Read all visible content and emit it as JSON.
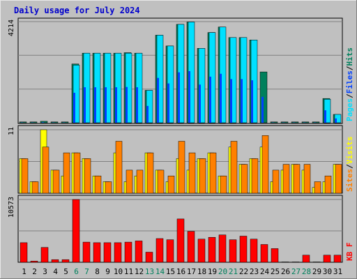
{
  "title": "Daily usage for July 2024",
  "colors": {
    "background": "#c0c0c0",
    "plot_area": "#c0c0c0",
    "border_light": "#e8e8e8",
    "border_dark": "#808080",
    "title": "#0000cc",
    "grid": "#808080",
    "hits": "#00805c",
    "files": "#0040ff",
    "pages": "#00e0ff",
    "visits": "#ffff00",
    "sites": "#ff8000",
    "kbytes": "#ff0000",
    "weekend_label": "#00805c",
    "weekday_label": "#000000"
  },
  "chart_data": [
    {
      "type": "bar",
      "panel": "hits-files-pages",
      "ymax_label": "4214",
      "ylim": [
        0,
        4214
      ],
      "legend_placement": "right",
      "legend": [
        {
          "text": "Pages",
          "color": "#00e0ff"
        },
        {
          "text": "/",
          "color": "#000000"
        },
        {
          "text": "Files",
          "color": "#0040ff"
        },
        {
          "text": "/",
          "color": "#000000"
        },
        {
          "text": "Hits",
          "color": "#00805c"
        }
      ],
      "categories": [
        "1",
        "2",
        "3",
        "4",
        "5",
        "6",
        "7",
        "8",
        "9",
        "10",
        "11",
        "12",
        "13",
        "14",
        "15",
        "16",
        "17",
        "18",
        "19",
        "20",
        "21",
        "22",
        "23",
        "24",
        "25",
        "26",
        "27",
        "28",
        "29",
        "30",
        "31"
      ],
      "series": [
        {
          "name": "Hits",
          "values": [
            35,
            35,
            60,
            35,
            35,
            2450,
            2900,
            2900,
            2900,
            2900,
            2920,
            2900,
            1350,
            3650,
            3200,
            4100,
            4200,
            3100,
            3760,
            3990,
            3550,
            3550,
            3450,
            2120,
            35,
            35,
            35,
            35,
            35,
            1010,
            350
          ]
        },
        {
          "name": "Files",
          "values": [
            10,
            10,
            20,
            10,
            10,
            1250,
            1480,
            1480,
            1480,
            1480,
            1490,
            1480,
            700,
            1870,
            1640,
            2100,
            2150,
            1590,
            1920,
            2040,
            1820,
            1820,
            1770,
            1080,
            10,
            10,
            10,
            10,
            10,
            520,
            180
          ]
        },
        {
          "name": "Pages",
          "values": [
            0,
            0,
            0,
            0,
            0,
            2400,
            2900,
            2900,
            2900,
            2900,
            2900,
            2900,
            1350,
            3650,
            3200,
            4100,
            4200,
            3100,
            3760,
            3990,
            3550,
            3550,
            3450,
            0,
            0,
            0,
            0,
            0,
            0,
            980,
            350
          ]
        }
      ]
    },
    {
      "type": "bar",
      "panel": "visits-sites",
      "ymax_label": "11",
      "ylim": [
        0,
        11
      ],
      "legend_placement": "right",
      "legend": [
        {
          "text": "Sites",
          "color": "#ff8000"
        },
        {
          "text": "/",
          "color": "#000000"
        },
        {
          "text": "Visits",
          "color": "#ffff00"
        }
      ],
      "categories": [
        "1",
        "2",
        "3",
        "4",
        "5",
        "6",
        "7",
        "8",
        "9",
        "10",
        "11",
        "12",
        "13",
        "14",
        "15",
        "16",
        "17",
        "18",
        "19",
        "20",
        "21",
        "22",
        "23",
        "24",
        "25",
        "26",
        "27",
        "28",
        "29",
        "30",
        "31"
      ],
      "series": [
        {
          "name": "Visits",
          "values": [
            6,
            2,
            11,
            4,
            3,
            7,
            6,
            3,
            2,
            7,
            2,
            3,
            7,
            4,
            2,
            6,
            4,
            6,
            7,
            3,
            8,
            5,
            6,
            8,
            2,
            4,
            5,
            4,
            1,
            2,
            5
          ]
        },
        {
          "name": "Sites",
          "values": [
            6,
            2,
            8,
            4,
            7,
            7,
            6,
            3,
            2,
            9,
            4,
            4,
            7,
            4,
            3,
            9,
            7,
            6,
            7,
            3,
            9,
            5,
            6,
            10,
            4,
            5,
            5,
            5,
            2,
            3,
            5
          ]
        }
      ]
    },
    {
      "type": "bar",
      "panel": "kbytes",
      "ymax_label": "10573",
      "ylim": [
        0,
        10573
      ],
      "legend_placement": "right",
      "legend": [
        {
          "text": "KB F",
          "color": "#ff0000"
        }
      ],
      "categories": [
        "1",
        "2",
        "3",
        "4",
        "5",
        "6",
        "7",
        "8",
        "9",
        "10",
        "11",
        "12",
        "13",
        "14",
        "15",
        "16",
        "17",
        "18",
        "19",
        "20",
        "21",
        "22",
        "23",
        "24",
        "25",
        "26",
        "27",
        "28",
        "29",
        "30",
        "31"
      ],
      "series": [
        {
          "name": "KB F",
          "values": [
            3300,
            200,
            2500,
            450,
            450,
            10573,
            3400,
            3300,
            3300,
            3300,
            3400,
            3600,
            1700,
            4000,
            3800,
            7300,
            5200,
            3900,
            4200,
            4600,
            3800,
            4400,
            3900,
            3000,
            2300,
            60,
            60,
            1200,
            60,
            1200,
            1200
          ]
        }
      ]
    }
  ],
  "xaxis": {
    "labels": [
      "1",
      "2",
      "3",
      "4",
      "5",
      "6",
      "7",
      "8",
      "9",
      "10",
      "11",
      "12",
      "13",
      "14",
      "15",
      "16",
      "17",
      "18",
      "19",
      "20",
      "21",
      "22",
      "23",
      "24",
      "25",
      "26",
      "27",
      "28",
      "29",
      "30",
      "31"
    ],
    "weekend": [
      6,
      7,
      13,
      14,
      20,
      21,
      27,
      28
    ]
  }
}
